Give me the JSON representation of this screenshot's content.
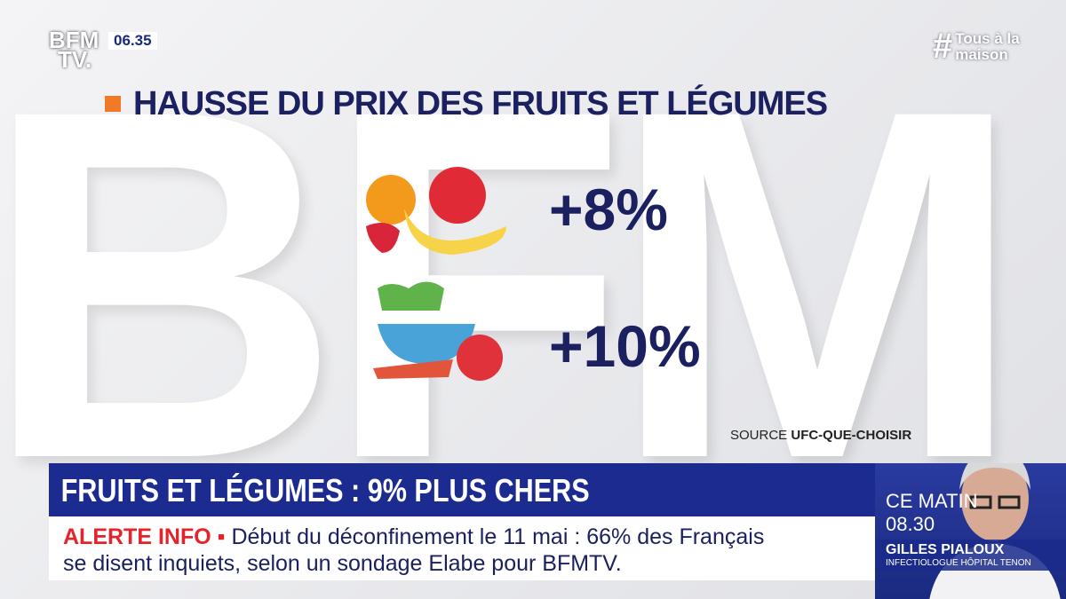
{
  "channel": {
    "logo_top": "BFM",
    "logo_bottom": "TV.",
    "time": "06.35",
    "hashtag_symbol": "#",
    "hashtag_line1": "Tous à la",
    "hashtag_line2": "maison"
  },
  "graphic": {
    "watermark": "BFM",
    "title": "HAUSSE DU PRIX DES FRUITS ET LÉGUMES",
    "items": [
      {
        "value": "+8%"
      },
      {
        "value": "+10%"
      }
    ],
    "source_prefix": "SOURCE",
    "source": "UFC-QUE-CHOISIR"
  },
  "headline": "FRUITS ET LÉGUMES : 9% PLUS CHERS",
  "ticker": {
    "tag": "ALERTE INFO",
    "line1": "Début du déconfinement le 11 mai : 66% des Français",
    "line2": "se disent inquiets, selon un sondage Elabe pour BFMTV."
  },
  "inset": {
    "line1": "CE MATIN",
    "time": "08.30",
    "name": "GILLES PIALOUX",
    "role": "INFECTIOLOGUE HÔPITAL TENON"
  }
}
